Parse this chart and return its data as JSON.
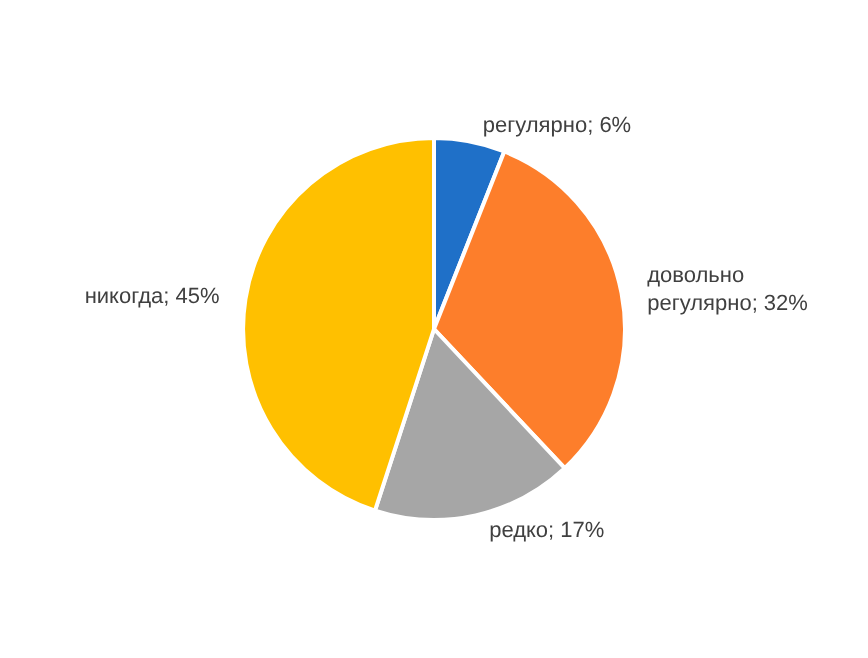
{
  "chart_data": {
    "type": "pie",
    "categories": [
      "регулярно",
      "довольно регулярно",
      "редко",
      "никогда"
    ],
    "values": [
      6,
      32,
      17,
      45
    ],
    "value_labels": [
      "6%",
      "32%",
      "17%",
      "45%"
    ],
    "colors": [
      "#1f70c8",
      "#fd7e2b",
      "#a6a6a6",
      "#ffc000"
    ],
    "legend": false
  }
}
